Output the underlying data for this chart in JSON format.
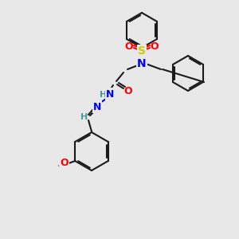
{
  "bg_color": "#e8e8e8",
  "bond_color": "#1a1a1a",
  "bond_width": 1.5,
  "atom_colors": {
    "N": "#0000ee",
    "O": "#ff0000",
    "S": "#cccc00",
    "H_teal": "#4a9a9a",
    "C": "#1a1a1a"
  },
  "font_size_atom": 9,
  "font_size_small": 7.5
}
